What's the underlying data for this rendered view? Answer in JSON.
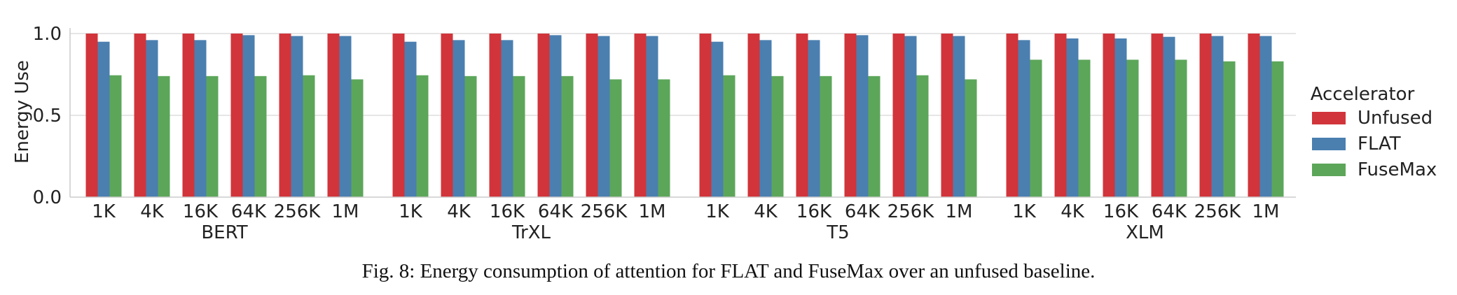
{
  "caption": "Fig. 8: Energy consumption of attention for FLAT and FuseMax over an unfused baseline.",
  "chart_data": {
    "type": "bar",
    "ylabel": "Energy Use",
    "ylim": [
      0,
      1.0
    ],
    "yticks": [
      "0.0",
      "0.5",
      "1.0"
    ],
    "ytick_values": [
      0,
      0.5,
      1.0
    ],
    "grid": true,
    "legend": {
      "title": "Accelerator",
      "placement": "right"
    },
    "categories": [
      "1K",
      "4K",
      "16K",
      "64K",
      "256K",
      "1M"
    ],
    "groups": [
      {
        "name": "BERT",
        "series": [
          {
            "name": "Unfused",
            "values": [
              1.0,
              1.0,
              1.0,
              1.0,
              1.0,
              1.0
            ]
          },
          {
            "name": "FLAT",
            "values": [
              0.95,
              0.96,
              0.96,
              0.99,
              0.985,
              0.985
            ]
          },
          {
            "name": "FuseMax",
            "values": [
              0.745,
              0.74,
              0.74,
              0.74,
              0.745,
              0.72
            ]
          }
        ]
      },
      {
        "name": "TrXL",
        "series": [
          {
            "name": "Unfused",
            "values": [
              1.0,
              1.0,
              1.0,
              1.0,
              1.0,
              1.0
            ]
          },
          {
            "name": "FLAT",
            "values": [
              0.95,
              0.96,
              0.96,
              0.99,
              0.985,
              0.985
            ]
          },
          {
            "name": "FuseMax",
            "values": [
              0.745,
              0.74,
              0.74,
              0.74,
              0.72,
              0.72
            ]
          }
        ]
      },
      {
        "name": "T5",
        "series": [
          {
            "name": "Unfused",
            "values": [
              1.0,
              1.0,
              1.0,
              1.0,
              1.0,
              1.0
            ]
          },
          {
            "name": "FLAT",
            "values": [
              0.95,
              0.96,
              0.96,
              0.99,
              0.985,
              0.985
            ]
          },
          {
            "name": "FuseMax",
            "values": [
              0.745,
              0.74,
              0.74,
              0.74,
              0.745,
              0.72
            ]
          }
        ]
      },
      {
        "name": "XLM",
        "series": [
          {
            "name": "Unfused",
            "values": [
              1.0,
              1.0,
              1.0,
              1.0,
              1.0,
              1.0
            ]
          },
          {
            "name": "FLAT",
            "values": [
              0.96,
              0.97,
              0.97,
              0.98,
              0.985,
              0.985
            ]
          },
          {
            "name": "FuseMax",
            "values": [
              0.84,
              0.84,
              0.84,
              0.84,
              0.83,
              0.83
            ]
          }
        ]
      }
    ],
    "colors": {
      "Unfused": "#d1343a",
      "FLAT": "#4a7fb0",
      "FuseMax": "#5ca65a"
    }
  }
}
